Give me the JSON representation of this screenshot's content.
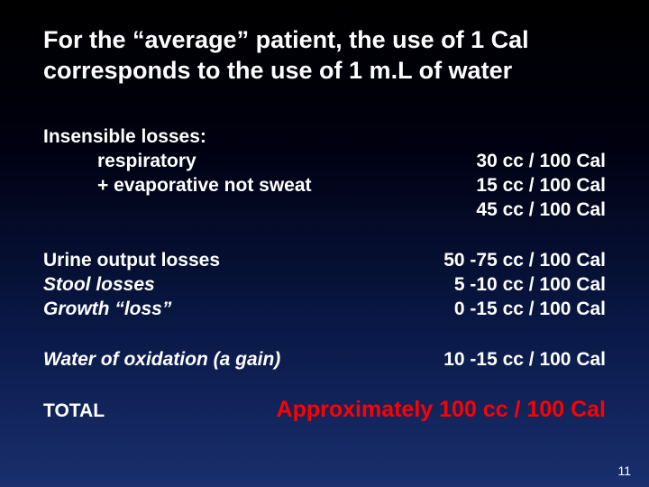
{
  "title": "For the “average” patient, the use of 1 Cal corresponds to the use of 1 m.L of water",
  "colors": {
    "text": "#ffffff",
    "highlight": "#ff0000",
    "bg_top": "#000000",
    "bg_bottom": "#1a2f6e"
  },
  "fontsize": {
    "title": 27,
    "body": 21,
    "total_value": 25,
    "pagenum": 14
  },
  "section1": {
    "header": "Insensible losses:",
    "row1_label": "respiratory",
    "row1_value": "30 cc / 100 Cal",
    "row2_label": "+ evaporative not sweat",
    "row2_value": "15 cc / 100 Cal",
    "row3_value": "45 cc / 100 Cal"
  },
  "section2": {
    "row1_label": "Urine output losses",
    "row1_value": "50 -75 cc / 100 Cal",
    "row2_label": "Stool losses",
    "row2_value": "5 -10 cc / 100 Cal",
    "row3_label": "Growth “loss”",
    "row3_value": "0 -15 cc / 100 Cal"
  },
  "section3": {
    "row1_label": "Water of oxidation (a gain)",
    "row1_value": "10 -15 cc / 100 Cal"
  },
  "total": {
    "label": "TOTAL",
    "value": "Approximately  100 cc / 100 Cal",
    "value_color": "#ff0000"
  },
  "page_number": "11"
}
